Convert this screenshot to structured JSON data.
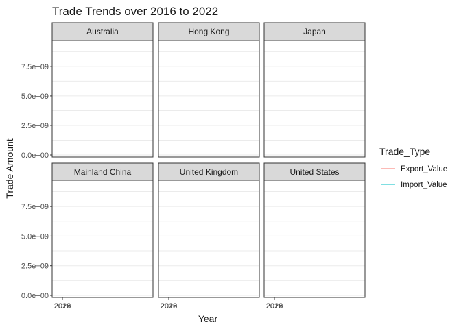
{
  "chart_data": {
    "type": "line",
    "title": "Trade Trends over 2016 to 2022",
    "xlabel": "Year",
    "ylabel": "Trade Amount",
    "facets": [
      "Australia",
      "Hong Kong",
      "Japan",
      "Mainland China",
      "United Kingdom",
      "United States"
    ],
    "facet_layout": {
      "rows": 2,
      "cols": 3
    },
    "x_tick_labels": [
      "2016",
      "2018",
      "2020",
      "2022"
    ],
    "y_ticks": [
      0,
      2500000000,
      5000000000,
      7500000000
    ],
    "y_tick_labels": [
      "0.0e+00",
      "2.5e+09",
      "5.0e+09",
      "7.5e+09"
    ],
    "ylim": [
      0,
      9700000000
    ],
    "legend": {
      "title": "Trade_Type",
      "position": "right",
      "entries": [
        {
          "name": "Export_Value",
          "color": "#F8766D"
        },
        {
          "name": "Import_Value",
          "color": "#00BFC4"
        }
      ]
    },
    "series": [
      {
        "name": "Export_Value",
        "color": "#F8766D",
        "values": []
      },
      {
        "name": "Import_Value",
        "color": "#00BFC4",
        "values": []
      }
    ],
    "grid": true
  }
}
